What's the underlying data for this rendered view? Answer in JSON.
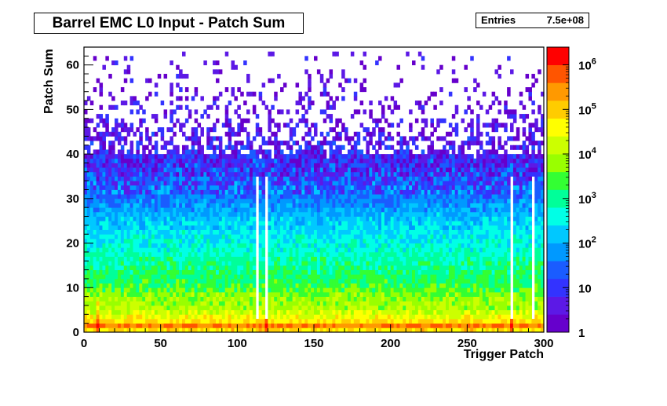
{
  "title": "Barrel EMC L0 Input - Patch Sum",
  "stats": {
    "label": "Entries",
    "value": "7.5e+08"
  },
  "footer_text": "",
  "colors": {
    "frame": "#000000",
    "background": "#ffffff"
  },
  "chart_data": {
    "type": "heatmap",
    "xlabel": "Trigger Patch",
    "ylabel": "Patch Sum",
    "xlim": [
      0,
      300
    ],
    "ylim": [
      0,
      64
    ],
    "x_ticks": [
      0,
      50,
      100,
      150,
      200,
      250,
      300
    ],
    "y_ticks": [
      0,
      10,
      20,
      30,
      40,
      50,
      60
    ],
    "z_scale": "log",
    "zlim": [
      1,
      2500000
    ],
    "z_tick_labels": [
      {
        "value": 1,
        "base": "1",
        "exp": ""
      },
      {
        "value": 10,
        "base": "10",
        "exp": ""
      },
      {
        "value": 100,
        "base": "10",
        "exp": "2"
      },
      {
        "value": 1000,
        "base": "10",
        "exp": "3"
      },
      {
        "value": 10000,
        "base": "10",
        "exp": "4"
      },
      {
        "value": 100000,
        "base": "10",
        "exp": "5"
      },
      {
        "value": 1000000,
        "base": "10",
        "exp": "6"
      }
    ],
    "palette": [
      "#6600cc",
      "#5c19e6",
      "#3333ff",
      "#1a5cff",
      "#0099ff",
      "#00c8ff",
      "#00ffe6",
      "#00ff99",
      "#33ff33",
      "#99ff00",
      "#ccff00",
      "#ffff00",
      "#ffcc00",
      "#ff9900",
      "#ff5500",
      "#ff0000"
    ],
    "profile": {
      "y_bins": [
        0,
        1,
        2,
        3,
        4,
        5,
        8,
        10,
        15,
        20,
        25,
        30,
        35,
        40,
        45,
        50,
        55,
        60,
        62
      ],
      "log10_counts": [
        3.5,
        6.2,
        5.0,
        4.6,
        4.4,
        4.0,
        3.8,
        3.4,
        3.0,
        2.6,
        2.2,
        1.6,
        1.1,
        0.7,
        0.4,
        0.2,
        0.05,
        0.0,
        0.6
      ]
    },
    "hot_patches": [
      8,
      118,
      278
    ],
    "dead_patches": [
      112,
      118,
      278,
      292
    ]
  }
}
